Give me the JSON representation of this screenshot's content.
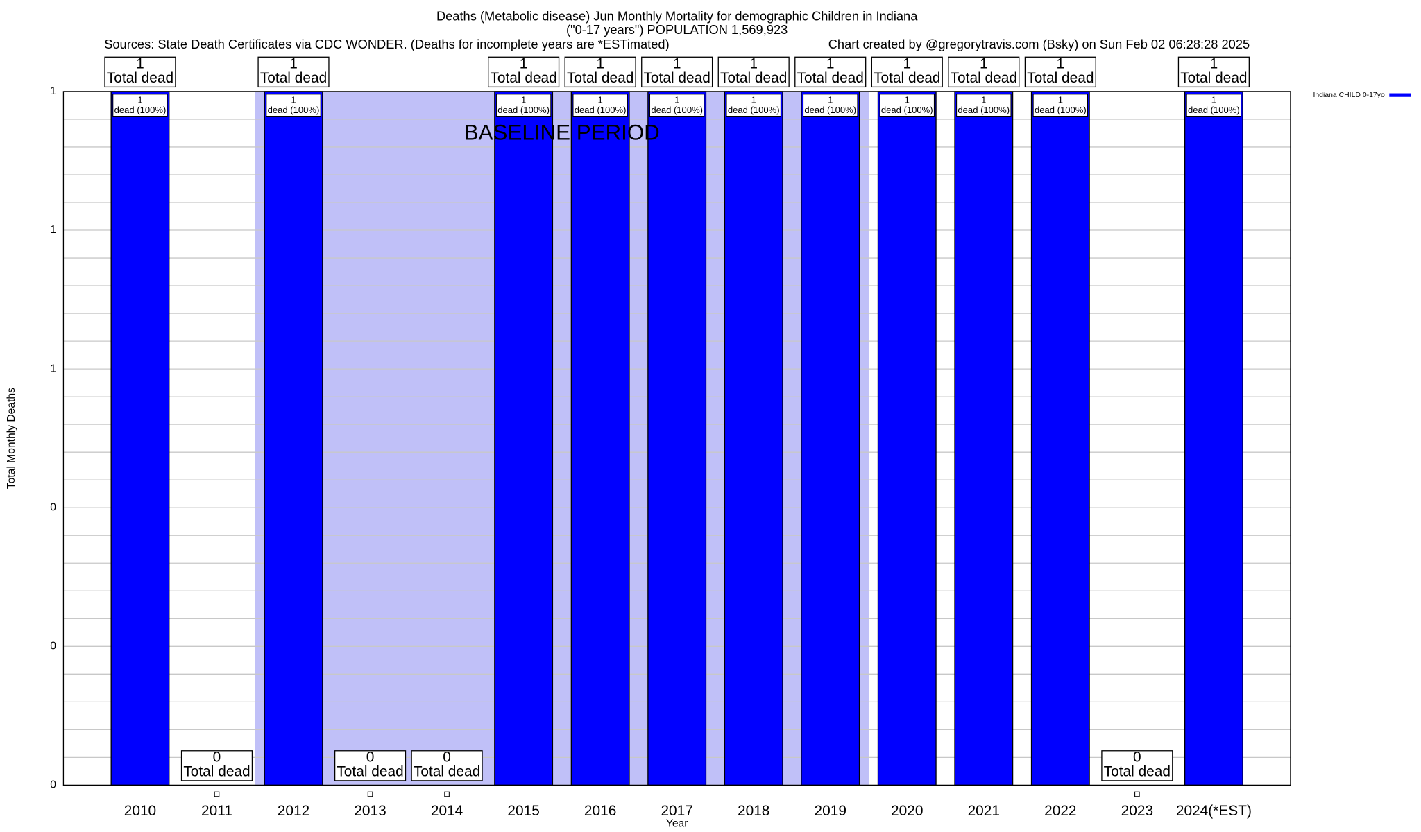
{
  "chart_data": {
    "type": "bar",
    "title": "Deaths (Metabolic disease) Jun Monthly Mortality for demographic Children in Indiana",
    "subtitle": "(\"0-17 years\") POPULATION 1,569,923",
    "source": "Sources: State Death Certificates via CDC WONDER. (Deaths for incomplete years are *ESTimated)",
    "credit": "Chart created by @gregorytravis.com (Bsky) on Sun Feb 02 06:28:28 2025",
    "y_label": "Total Monthly Deaths",
    "x_label": "Year",
    "categories": [
      "2010",
      "2011",
      "2012",
      "2013",
      "2014",
      "2015",
      "2016",
      "2017",
      "2018",
      "2019",
      "2020",
      "2021",
      "2022",
      "2023",
      "2024(*EST)"
    ],
    "series": [
      {
        "name": "Indiana CHILD 0-17yo",
        "color": "#0000ff",
        "values": [
          1,
          0,
          1,
          0,
          0,
          1,
          1,
          1,
          1,
          1,
          1,
          1,
          1,
          0,
          1
        ]
      }
    ],
    "ylim": [
      0,
      1
    ],
    "yticks": [
      0,
      {
        "value": 0.2,
        "label": "0"
      },
      {
        "value": 0.4,
        "label": "0"
      },
      {
        "value": 0.6,
        "label": "1"
      },
      {
        "value": 0.8,
        "label": "1"
      },
      1
    ],
    "grid": true,
    "legend": "upper right",
    "bar_label": "Total dead",
    "inner_label": "dead (100%)",
    "baseline": {
      "label": "BASELINE PERIOD",
      "start": "2012",
      "end": "2019",
      "color": "#c0c0f8"
    }
  }
}
